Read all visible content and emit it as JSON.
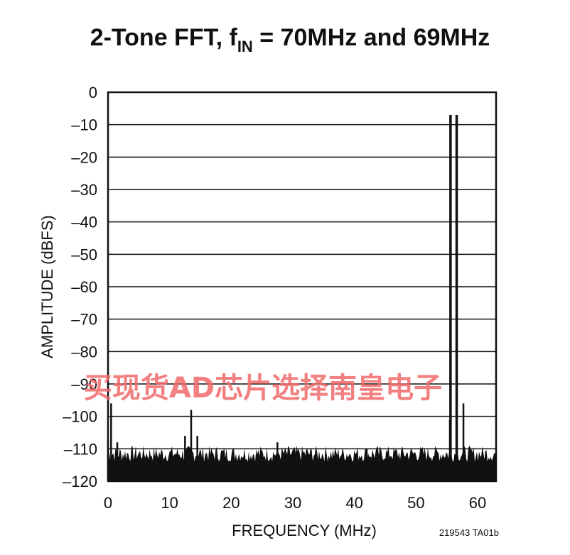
{
  "chart_data": {
    "type": "bar",
    "title": {
      "main": "2-Tone FFT, f",
      "sub": "IN",
      "rest": " = 70MHz and 69MHz"
    },
    "xlabel": "FREQUENCY (MHz)",
    "ylabel": "AMPLITUDE (dBFS)",
    "xlim": [
      0,
      63
    ],
    "ylim": [
      -120,
      0
    ],
    "xticks": [
      0,
      10,
      20,
      30,
      40,
      50,
      60
    ],
    "xtick_labels": [
      "0",
      "10",
      "20",
      "30",
      "40",
      "50",
      "60"
    ],
    "yticks": [
      0,
      -10,
      -20,
      -30,
      -40,
      -50,
      -60,
      -70,
      -80,
      -90,
      -100,
      -110,
      -120
    ],
    "ytick_labels": [
      "0",
      "–10",
      "–20",
      "–30",
      "–40",
      "–50",
      "–60",
      "–70",
      "–80",
      "–90",
      "–100",
      "–110",
      "–120"
    ],
    "grid": true,
    "noise_floor_dbfs": -114,
    "spurs": [
      {
        "x": 0.0,
        "y": -107
      },
      {
        "x": 0.5,
        "y": -96
      },
      {
        "x": 1.5,
        "y": -108
      },
      {
        "x": 7.5,
        "y": -112
      },
      {
        "x": 12.5,
        "y": -106
      },
      {
        "x": 13.5,
        "y": -98
      },
      {
        "x": 14.5,
        "y": -106
      },
      {
        "x": 27.5,
        "y": -108
      },
      {
        "x": 42.0,
        "y": -110
      },
      {
        "x": 55.5,
        "y": -101
      },
      {
        "x": 55.6,
        "y": -7
      },
      {
        "x": 56.6,
        "y": -7
      },
      {
        "x": 57.7,
        "y": -96
      }
    ],
    "figure_code": "219543 TA01b"
  },
  "watermark": "买现货AD芯片选择南皇电子"
}
